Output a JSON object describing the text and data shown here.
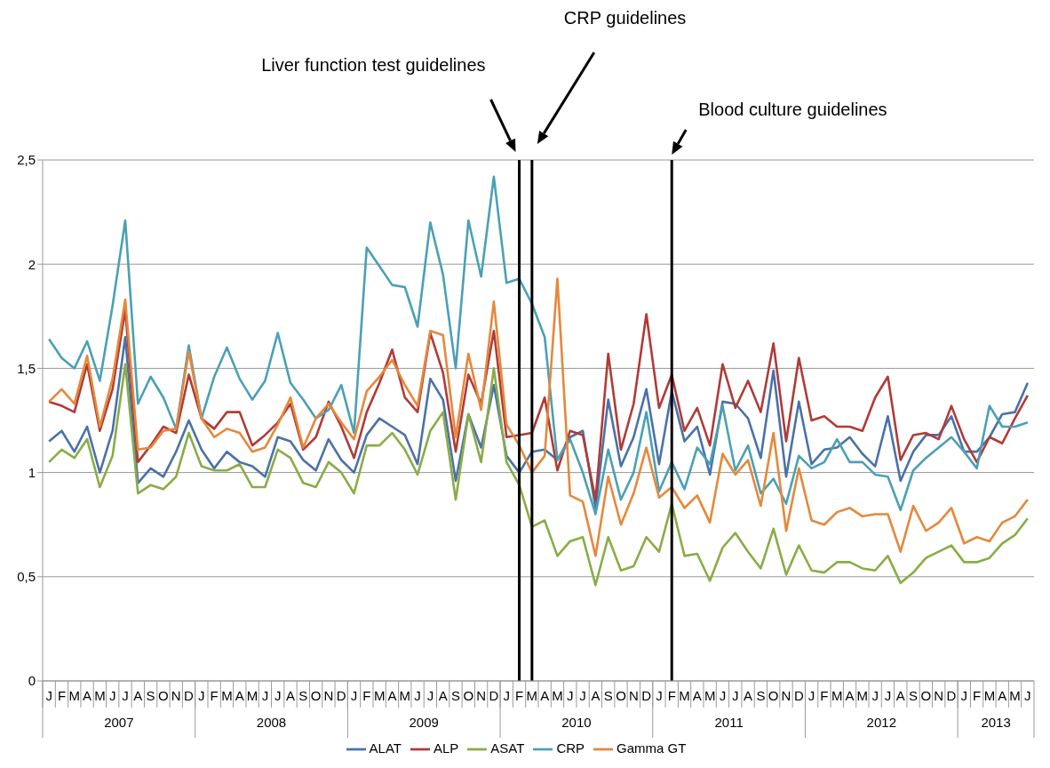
{
  "chart_data": {
    "type": "line",
    "marker": "none",
    "grid": "y",
    "legend": "bottom",
    "categories": [
      "J",
      "F",
      "M",
      "A",
      "M",
      "J",
      "J",
      "A",
      "S",
      "O",
      "N",
      "D",
      "J",
      "F",
      "M",
      "A",
      "M",
      "J",
      "J",
      "A",
      "S",
      "O",
      "N",
      "D",
      "J",
      "F",
      "M",
      "A",
      "M",
      "J",
      "J",
      "A",
      "S",
      "O",
      "N",
      "D",
      "J",
      "F",
      "M",
      "A",
      "M",
      "J",
      "J",
      "A",
      "S",
      "O",
      "N",
      "D",
      "J",
      "F",
      "M",
      "A",
      "M",
      "J",
      "J",
      "A",
      "S",
      "O",
      "N",
      "D",
      "J",
      "F",
      "M",
      "A",
      "M",
      "J",
      "J",
      "A",
      "S",
      "O",
      "N",
      "D",
      "J",
      "F",
      "M",
      "A",
      "M",
      "J"
    ],
    "ylim": [
      0,
      2.5
    ],
    "yticks": [
      {
        "value": 0,
        "label": "0"
      },
      {
        "value": 0.5,
        "label": "0,5"
      },
      {
        "value": 1,
        "label": "1"
      },
      {
        "value": 1.5,
        "label": "1,5"
      },
      {
        "value": 2,
        "label": "2"
      },
      {
        "value": 2.5,
        "label": "2,5"
      }
    ],
    "series": [
      {
        "name": "ALAT",
        "color": "#4a72a8",
        "values": [
          1.15,
          1.2,
          1.1,
          1.22,
          1.0,
          1.2,
          1.65,
          0.95,
          1.02,
          0.98,
          1.1,
          1.25,
          1.11,
          1.02,
          1.1,
          1.05,
          1.03,
          0.98,
          1.17,
          1.15,
          1.06,
          1.01,
          1.16,
          1.06,
          1.0,
          1.18,
          1.26,
          1.22,
          1.18,
          1.04,
          1.45,
          1.35,
          0.96,
          1.28,
          1.12,
          1.42,
          1.08,
          1.0,
          1.1,
          1.11,
          1.06,
          1.17,
          1.2,
          0.83,
          1.35,
          1.03,
          1.17,
          1.4,
          1.04,
          1.39,
          1.15,
          1.22,
          0.99,
          1.34,
          1.33,
          1.26,
          1.07,
          1.49,
          0.98,
          1.34,
          1.04,
          1.11,
          1.12,
          1.17,
          1.09,
          1.03,
          1.27,
          0.96,
          1.1,
          1.18,
          1.18,
          1.27,
          1.1,
          1.1,
          1.17,
          1.28,
          1.29,
          1.43
        ]
      },
      {
        "name": "ALP",
        "color": "#b03b37",
        "values": [
          1.34,
          1.32,
          1.29,
          1.52,
          1.2,
          1.4,
          1.78,
          1.05,
          1.13,
          1.22,
          1.19,
          1.47,
          1.26,
          1.21,
          1.29,
          1.29,
          1.13,
          1.18,
          1.24,
          1.33,
          1.11,
          1.17,
          1.34,
          1.22,
          1.07,
          1.29,
          1.43,
          1.59,
          1.36,
          1.29,
          1.67,
          1.48,
          1.1,
          1.47,
          1.33,
          1.68,
          1.17,
          1.18,
          1.19,
          1.36,
          1.01,
          1.2,
          1.18,
          0.87,
          1.57,
          1.11,
          1.33,
          1.76,
          1.31,
          1.47,
          1.2,
          1.31,
          1.13,
          1.52,
          1.31,
          1.44,
          1.29,
          1.62,
          1.15,
          1.55,
          1.25,
          1.27,
          1.22,
          1.22,
          1.2,
          1.36,
          1.46,
          1.06,
          1.18,
          1.19,
          1.16,
          1.32,
          1.16,
          1.05,
          1.17,
          1.14,
          1.26,
          1.37
        ]
      },
      {
        "name": "ASAT",
        "color": "#8aac46",
        "values": [
          1.05,
          1.11,
          1.07,
          1.16,
          0.93,
          1.08,
          1.52,
          0.9,
          0.94,
          0.92,
          0.98,
          1.19,
          1.03,
          1.01,
          1.01,
          1.04,
          0.93,
          0.93,
          1.11,
          1.07,
          0.95,
          0.93,
          1.05,
          1.0,
          0.9,
          1.13,
          1.13,
          1.19,
          1.11,
          0.99,
          1.2,
          1.29,
          0.87,
          1.28,
          1.05,
          1.5,
          1.05,
          0.94,
          0.74,
          0.77,
          0.6,
          0.67,
          0.69,
          0.46,
          0.69,
          0.53,
          0.55,
          0.69,
          0.62,
          0.85,
          0.6,
          0.61,
          0.48,
          0.64,
          0.71,
          0.62,
          0.54,
          0.73,
          0.51,
          0.65,
          0.53,
          0.52,
          0.57,
          0.57,
          0.54,
          0.53,
          0.6,
          0.47,
          0.52,
          0.59,
          0.62,
          0.65,
          0.57,
          0.57,
          0.59,
          0.66,
          0.7,
          0.78
        ]
      },
      {
        "name": "CRP",
        "color": "#4ba0b6",
        "values": [
          1.64,
          1.55,
          1.5,
          1.63,
          1.44,
          1.8,
          2.21,
          1.33,
          1.46,
          1.36,
          1.21,
          1.61,
          1.26,
          1.46,
          1.6,
          1.45,
          1.35,
          1.44,
          1.67,
          1.43,
          1.35,
          1.26,
          1.3,
          1.42,
          1.19,
          2.08,
          1.99,
          1.9,
          1.89,
          1.7,
          2.2,
          1.95,
          1.5,
          2.21,
          1.94,
          2.42,
          1.91,
          1.93,
          1.81,
          1.65,
          1.06,
          1.16,
          1.0,
          0.8,
          1.11,
          0.87,
          1.0,
          1.29,
          0.91,
          1.05,
          0.92,
          1.12,
          1.04,
          1.32,
          1.01,
          1.13,
          0.9,
          0.97,
          0.85,
          1.08,
          1.02,
          1.05,
          1.16,
          1.05,
          1.05,
          0.99,
          0.98,
          0.82,
          1.01,
          1.07,
          1.12,
          1.17,
          1.1,
          1.02,
          1.32,
          1.22,
          1.22,
          1.24
        ]
      },
      {
        "name": "Gamma GT",
        "color": "#e5883b",
        "values": [
          1.34,
          1.4,
          1.33,
          1.56,
          1.22,
          1.45,
          1.83,
          1.11,
          1.12,
          1.2,
          1.21,
          1.58,
          1.26,
          1.17,
          1.21,
          1.19,
          1.1,
          1.12,
          1.23,
          1.36,
          1.12,
          1.26,
          1.33,
          1.24,
          1.16,
          1.39,
          1.46,
          1.54,
          1.42,
          1.32,
          1.68,
          1.66,
          1.17,
          1.57,
          1.3,
          1.82,
          1.23,
          1.13,
          1.0,
          1.08,
          1.93,
          0.89,
          0.86,
          0.6,
          0.98,
          0.75,
          0.9,
          1.12,
          0.88,
          0.93,
          0.83,
          0.89,
          0.76,
          1.09,
          0.99,
          1.06,
          0.84,
          1.19,
          0.72,
          1.02,
          0.77,
          0.75,
          0.81,
          0.83,
          0.79,
          0.8,
          0.8,
          0.62,
          0.84,
          0.72,
          0.76,
          0.83,
          0.66,
          0.69,
          0.67,
          0.76,
          0.79,
          0.87
        ]
      }
    ],
    "annotations": [
      "2007",
      "2008",
      "2009",
      "2010",
      "2011",
      "2012",
      "2013",
      "Liver function test guidelines",
      "CRP guidelines",
      "Blood culture guidelines"
    ]
  }
}
